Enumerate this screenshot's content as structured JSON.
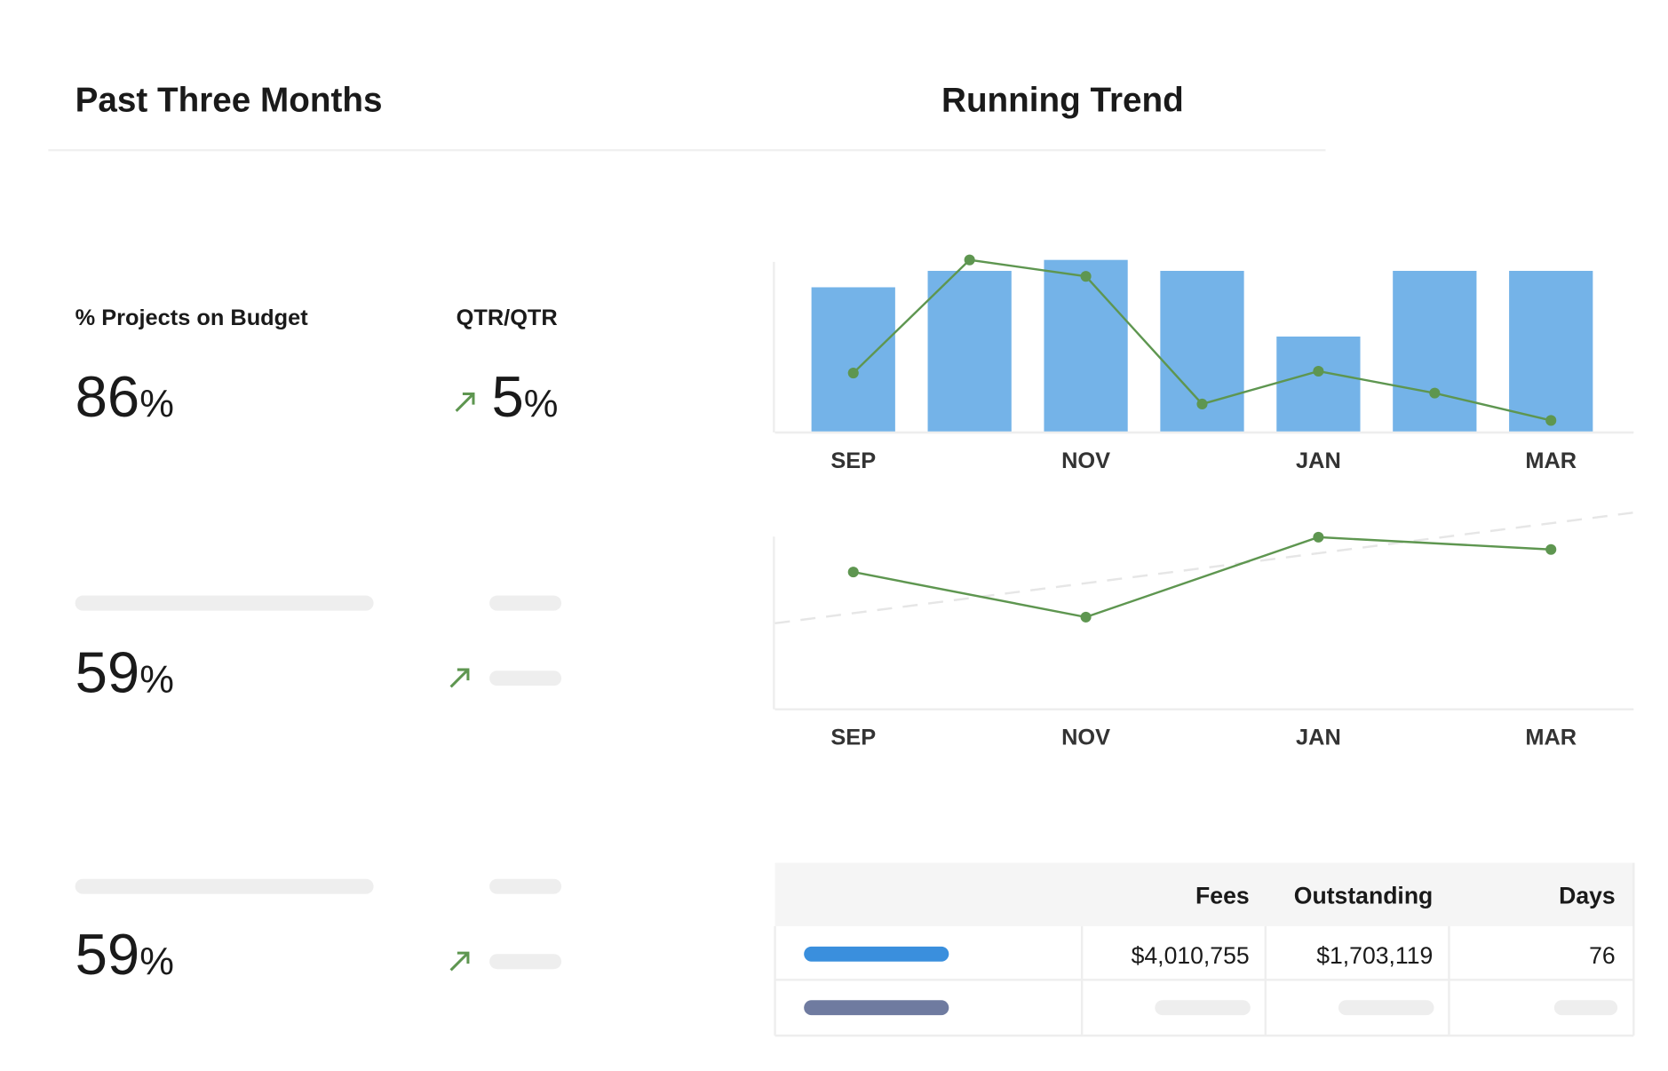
{
  "left_panel": {
    "title": "Past Three Months",
    "metric_label": "% Projects on Budget",
    "change_label": "QTR/QTR",
    "metrics": [
      {
        "value": 86,
        "unit": "%",
        "change": 5,
        "change_unit": "%"
      },
      {
        "value": 59,
        "unit": "%"
      },
      {
        "value": 59,
        "unit": "%"
      }
    ]
  },
  "right_panel": {
    "title": "Running Trend"
  },
  "chart_data": [
    {
      "type": "bar",
      "categories": [
        "SEP",
        null,
        "NOV",
        null,
        "JAN",
        null,
        "MAR"
      ],
      "ylim": [
        0,
        100
      ],
      "series": [
        {
          "type": "bar",
          "color": "#74b3e8",
          "values": [
            79,
            88,
            94,
            88,
            52,
            88,
            88
          ]
        },
        {
          "type": "line",
          "color": "#5e9650",
          "values": [
            32,
            94,
            85,
            15,
            33,
            21,
            6
          ]
        }
      ]
    },
    {
      "type": "line",
      "categories": [
        "SEP",
        "NOV",
        "JAN",
        "MAR"
      ],
      "ylim": [
        0,
        100
      ],
      "series": [
        {
          "type": "line",
          "color": "#5e9650",
          "values": [
            67,
            45,
            84,
            78
          ]
        }
      ],
      "trendline": {
        "color": "#e6e6e6",
        "values": [
          42,
          96
        ]
      }
    }
  ],
  "table": {
    "columns": [
      "Fees",
      "Outstanding",
      "Days"
    ],
    "rows": [
      [
        "$4,010,755",
        "$1,703,119",
        "76"
      ]
    ]
  }
}
